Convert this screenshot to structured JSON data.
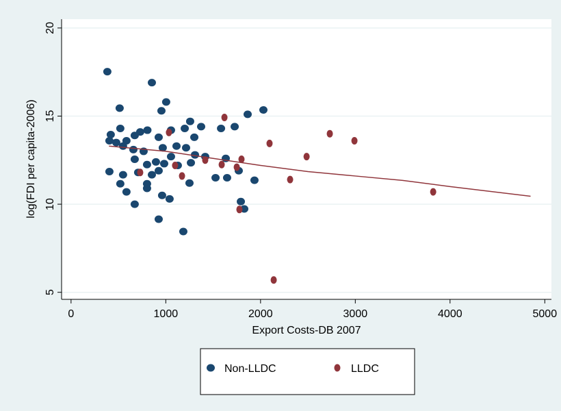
{
  "chart_data": {
    "type": "scatter",
    "x_label": "Export Costs-DB 2007",
    "y_label": "log(FDI per capita-2006)",
    "xlim": [
      -100,
      5070
    ],
    "ylim": [
      4.6,
      20.5
    ],
    "xticks": [
      0,
      1000,
      2000,
      3000,
      4000,
      5000
    ],
    "yticks": [
      5,
      10,
      15,
      20
    ],
    "grid": true,
    "legend": "bottom",
    "series": [
      {
        "name": "Non-LLDC",
        "color": "#1a476f",
        "x": [
          383,
          853,
          1004,
          2030,
          1864,
          513,
          954,
          1257,
          1727,
          1583,
          1373,
          520,
          419,
          405,
          477,
          585,
          730,
          806,
          1055,
          1200,
          1301,
          925,
          672,
          549,
          658,
          766,
          968,
          1113,
          1214,
          1308,
          405,
          549,
          520,
          585,
          672,
          802,
          961,
          1040,
          925,
          1185,
          1792,
          1828,
          1936,
          1525,
          1647,
          1250,
          708,
          853,
          802,
          983,
          896,
          802,
          672,
          1127,
          1265,
          1055,
          925,
          1633,
          1770,
          1416
        ],
        "y": [
          17.52,
          16.9,
          15.8,
          15.35,
          15.1,
          15.45,
          15.3,
          14.7,
          14.4,
          14.3,
          14.4,
          14.3,
          13.95,
          13.6,
          13.5,
          13.6,
          14.1,
          14.2,
          14.2,
          14.3,
          13.8,
          13.8,
          13.9,
          13.3,
          13.1,
          13.0,
          13.2,
          13.3,
          13.2,
          12.8,
          11.85,
          11.67,
          11.16,
          10.7,
          10.0,
          10.9,
          10.5,
          10.3,
          9.15,
          8.45,
          10.15,
          9.73,
          11.36,
          11.5,
          11.5,
          11.2,
          11.8,
          11.67,
          11.16,
          12.3,
          12.4,
          12.25,
          12.55,
          12.2,
          12.35,
          12.7,
          11.9,
          12.6,
          11.9,
          12.7
        ]
      },
      {
        "name": "LLDC",
        "color": "#90353b",
        "x": [
          1619,
          1033,
          2095,
          2731,
          2991,
          2486,
          1590,
          1416,
          1098,
          730,
          1171,
          2312,
          1749,
          1799,
          1777,
          3822,
          2139
        ],
        "y": [
          14.92,
          14.07,
          13.45,
          14.0,
          13.6,
          12.7,
          12.25,
          12.5,
          12.2,
          11.8,
          11.6,
          11.4,
          12.1,
          12.55,
          9.7,
          10.7,
          5.7
        ]
      }
    ],
    "fit": {
      "color": "#90353b",
      "x": [
        400,
        1000,
        1500,
        2000,
        2500,
        3000,
        3500,
        4000,
        4850
      ],
      "y": [
        13.3,
        13.0,
        12.6,
        12.2,
        11.85,
        11.6,
        11.35,
        11.0,
        10.45
      ]
    }
  }
}
